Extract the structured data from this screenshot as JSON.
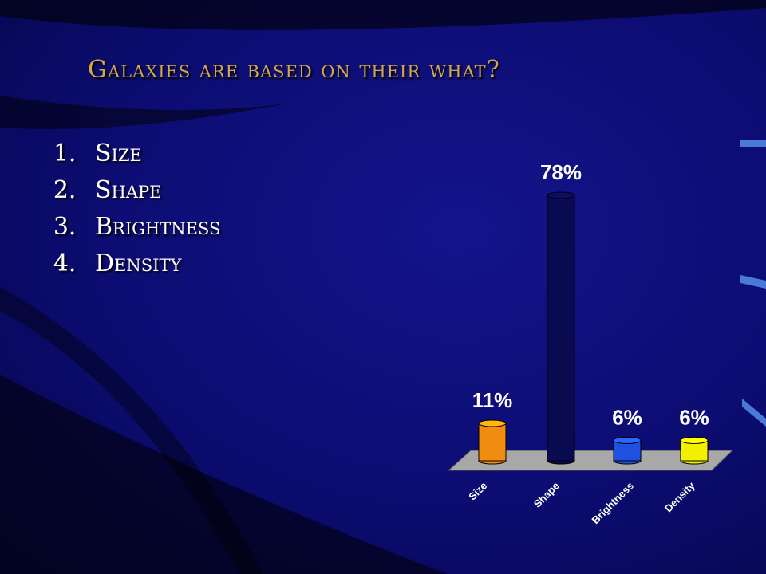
{
  "slide": {
    "title": "Galaxies are based on their what?",
    "options": [
      "Size",
      "Shape",
      "Brightness",
      "Density"
    ]
  },
  "chart_data": {
    "type": "bar",
    "categories": [
      "Size",
      "Shape",
      "Brightness",
      "Density"
    ],
    "values": [
      11,
      78,
      6,
      6
    ],
    "value_labels": [
      "11%",
      "78%",
      "6%",
      "6%"
    ],
    "colors": [
      "#f08c10",
      "#0a0a50",
      "#2050e0",
      "#f0f000"
    ]
  }
}
